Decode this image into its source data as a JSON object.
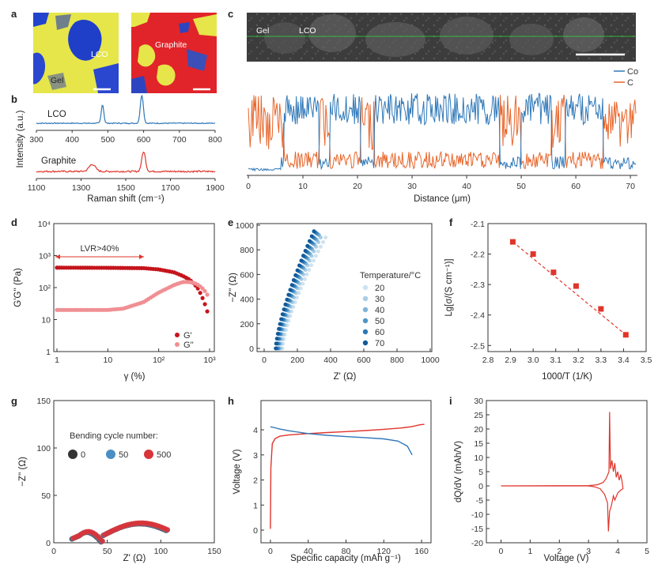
{
  "panels": {
    "a": {
      "letter": "a",
      "map1_labels": [
        "LCO",
        "Gel"
      ],
      "map2_labels": [
        "Graphite"
      ]
    },
    "b": {
      "letter": "b",
      "top_label": "LCO",
      "bottom_label": "Graphite",
      "top_ticks": [
        "300",
        "400",
        "500",
        "600",
        "700",
        "800"
      ],
      "bottom_ticks": [
        "1100",
        "1300",
        "1500",
        "1700",
        "1900"
      ],
      "xlabel": "Raman shift (cm⁻¹)",
      "ylabel": "Intensity (a.u.)"
    },
    "c": {
      "letter": "c",
      "image_labels": [
        "Gel",
        "LCO"
      ]
    },
    "d": {
      "letter": "d"
    },
    "e": {
      "letter": "e"
    },
    "f": {
      "letter": "f"
    },
    "g": {
      "letter": "g"
    },
    "h": {
      "letter": "h"
    },
    "i": {
      "letter": "i"
    }
  },
  "colors": {
    "co": "#2f78b8",
    "c": "#e8652a",
    "red": "#e0352b",
    "pink": "#f08f93",
    "dark": "#c4151c"
  },
  "chart_data": [
    {
      "id": "b",
      "type": "line",
      "xlabel": "Raman shift (cm⁻¹)",
      "ylabel": "Intensity (a.u.)",
      "series": [
        {
          "name": "LCO",
          "x_range": [
            300,
            800
          ],
          "peaks": [
            485,
            595
          ]
        },
        {
          "name": "Graphite",
          "x_range": [
            1100,
            1900
          ],
          "peaks": [
            1350,
            1580
          ]
        }
      ]
    },
    {
      "id": "c",
      "type": "line",
      "xlabel": "Distance (μm)",
      "xlim": [
        0,
        71
      ],
      "xticks": [
        0,
        10,
        20,
        30,
        40,
        50,
        60,
        70
      ],
      "legend": [
        "Co",
        "C"
      ],
      "segments_co_high": [
        [
          6.5,
          13
        ],
        [
          15,
          20.5
        ],
        [
          23,
          46
        ],
        [
          50,
          55.5
        ],
        [
          58,
          65
        ]
      ],
      "series": [
        {
          "name": "Co"
        },
        {
          "name": "C"
        }
      ]
    },
    {
      "id": "d",
      "type": "scatter",
      "xlabel": "γ (%)",
      "ylabel": "G'G'' (Pa)",
      "xscale": "log",
      "yscale": "log",
      "xlim": [
        1,
        1000
      ],
      "ylim": [
        1,
        10000
      ],
      "xticks": [
        "1",
        "10",
        "10²",
        "10³"
      ],
      "yticks": [
        "1",
        "10",
        "10²",
        "10³",
        "10⁴"
      ],
      "annotation": "LVR>40%",
      "annotation_range": [
        1.2,
        45
      ],
      "series": [
        {
          "name": "G'",
          "x": [
            1,
            10,
            50,
            100,
            200,
            300,
            400,
            500,
            600,
            700,
            800,
            900
          ],
          "y": [
            420,
            415,
            405,
            370,
            300,
            230,
            180,
            130,
            90,
            55,
            32,
            18
          ]
        },
        {
          "name": "G''",
          "x": [
            1,
            10,
            20,
            50,
            100,
            200,
            300,
            400,
            500,
            600,
            700,
            800,
            900
          ],
          "y": [
            20,
            20,
            22,
            35,
            70,
            120,
            150,
            150,
            140,
            120,
            100,
            80,
            60
          ]
        }
      ]
    },
    {
      "id": "e",
      "type": "scatter",
      "xlabel": "Z' (Ω)",
      "ylabel": "−Z'' (Ω)",
      "xlim": [
        0,
        1000
      ],
      "ylim": [
        0,
        1000
      ],
      "xticks": [
        0,
        200,
        400,
        600,
        800,
        1000
      ],
      "yticks": [
        0,
        200,
        400,
        600,
        800,
        1000
      ],
      "legend_title": "Temperature/°C",
      "series": [
        {
          "name": "20",
          "x0": 110,
          "x1": 370,
          "y1": 900
        },
        {
          "name": "30",
          "x0": 100,
          "x1": 340,
          "y1": 900
        },
        {
          "name": "40",
          "x0": 90,
          "x1": 330,
          "y1": 920
        },
        {
          "name": "50",
          "x0": 85,
          "x1": 320,
          "y1": 930
        },
        {
          "name": "60",
          "x0": 78,
          "x1": 310,
          "y1": 940
        },
        {
          "name": "70",
          "x0": 70,
          "x1": 300,
          "y1": 950
        }
      ]
    },
    {
      "id": "f",
      "type": "scatter",
      "xlabel": "1000/T (1/K)",
      "ylabel": "Lg[σ/(S cm⁻¹)]",
      "xlim": [
        2.8,
        3.5
      ],
      "ylim": [
        -2.52,
        -2.1
      ],
      "xticks": [
        "2.8",
        "2.9",
        "3.0",
        "3.1",
        "3.2",
        "3.3",
        "3.4",
        "3.5"
      ],
      "yticks": [
        "-2.1",
        "-2.2",
        "-2.3",
        "-2.4",
        "-2.5"
      ],
      "x": [
        2.91,
        3.0,
        3.09,
        3.19,
        3.3,
        3.41
      ],
      "y": [
        -2.16,
        -2.2,
        -2.26,
        -2.305,
        -2.38,
        -2.465
      ]
    },
    {
      "id": "g",
      "type": "scatter",
      "xlabel": "Z' (Ω)",
      "ylabel": "−Z'' (Ω)",
      "xlim": [
        0,
        150
      ],
      "ylim": [
        0,
        150
      ],
      "xticks": [
        0,
        50,
        100,
        150
      ],
      "yticks": [
        0,
        50,
        100,
        150
      ],
      "legend_title": "Bending cycle number:",
      "series": [
        {
          "name": "0"
        },
        {
          "name": "50"
        },
        {
          "name": "500"
        }
      ]
    },
    {
      "id": "h",
      "type": "line",
      "xlabel": "Specific capacity (mAh g⁻¹)",
      "ylabel": "Voltage (V)",
      "xlim": [
        -10,
        170
      ],
      "ylim": [
        0,
        5
      ],
      "xticks": [
        0,
        40,
        80,
        120,
        160
      ],
      "yticks": [
        0,
        1,
        2,
        3,
        4
      ],
      "series": [
        {
          "name": "charge",
          "x": [
            0,
            0.5,
            2,
            5,
            10,
            20,
            40,
            60,
            80,
            100,
            120,
            140,
            150,
            158,
            163
          ],
          "y": [
            0.05,
            2.5,
            3.45,
            3.65,
            3.75,
            3.8,
            3.85,
            3.89,
            3.93,
            3.97,
            4.02,
            4.08,
            4.13,
            4.2,
            4.22
          ]
        },
        {
          "name": "discharge",
          "x": [
            0,
            5,
            10,
            20,
            40,
            60,
            80,
            100,
            120,
            135,
            145,
            150
          ],
          "y": [
            4.12,
            4.08,
            4.03,
            3.96,
            3.85,
            3.78,
            3.73,
            3.69,
            3.64,
            3.55,
            3.35,
            3.0
          ]
        }
      ]
    },
    {
      "id": "i",
      "type": "line",
      "xlabel": "Voltage (V)",
      "ylabel": "dQ/dV (mAh/V)",
      "xlim": [
        -0.5,
        5
      ],
      "ylim": [
        -20,
        30
      ],
      "xticks": [
        0,
        1,
        2,
        3,
        4,
        5
      ],
      "yticks": [
        -20,
        -15,
        -10,
        -5,
        0,
        5,
        10,
        15,
        20,
        25,
        30
      ]
    }
  ]
}
